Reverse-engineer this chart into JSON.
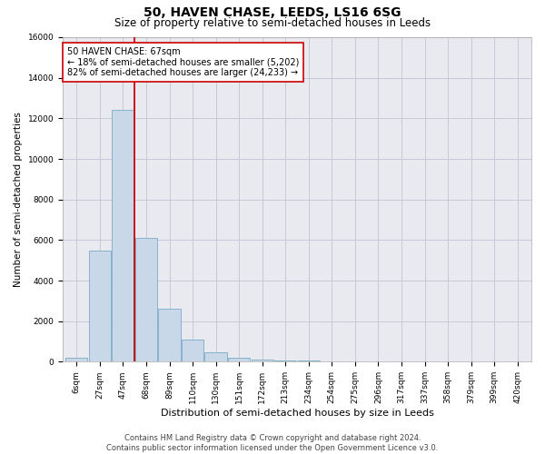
{
  "title": "50, HAVEN CHASE, LEEDS, LS16 6SG",
  "subtitle": "Size of property relative to semi-detached houses in Leeds",
  "xlabel": "Distribution of semi-detached houses by size in Leeds",
  "ylabel": "Number of semi-detached properties",
  "categories": [
    "6sqm",
    "27sqm",
    "47sqm",
    "68sqm",
    "89sqm",
    "110sqm",
    "130sqm",
    "151sqm",
    "172sqm",
    "213sqm",
    "234sqm",
    "254sqm",
    "275sqm",
    "296sqm",
    "317sqm",
    "337sqm",
    "358sqm",
    "379sqm",
    "399sqm",
    "420sqm"
  ],
  "values": [
    200,
    5500,
    12400,
    6100,
    2600,
    1100,
    450,
    200,
    120,
    80,
    50,
    0,
    0,
    0,
    0,
    0,
    0,
    0,
    0,
    0
  ],
  "bar_color": "#c8d8e8",
  "bar_edge_color": "#7aaac8",
  "vline_index": 2,
  "vline_color": "#cc0000",
  "annotation_text": "50 HAVEN CHASE: 67sqm\n← 18% of semi-detached houses are smaller (5,202)\n82% of semi-detached houses are larger (24,233) →",
  "annotation_box_color": "#ffffff",
  "annotation_box_edge_color": "#cc0000",
  "ylim": [
    0,
    16000
  ],
  "yticks": [
    0,
    2000,
    4000,
    6000,
    8000,
    10000,
    12000,
    14000,
    16000
  ],
  "grid_color": "#c8c8d8",
  "background_color": "#e8eaf0",
  "footer": "Contains HM Land Registry data © Crown copyright and database right 2024.\nContains public sector information licensed under the Open Government Licence v3.0.",
  "title_fontsize": 10,
  "subtitle_fontsize": 8.5,
  "xlabel_fontsize": 8,
  "ylabel_fontsize": 7.5,
  "tick_fontsize": 6.5,
  "annotation_fontsize": 7,
  "footer_fontsize": 6
}
